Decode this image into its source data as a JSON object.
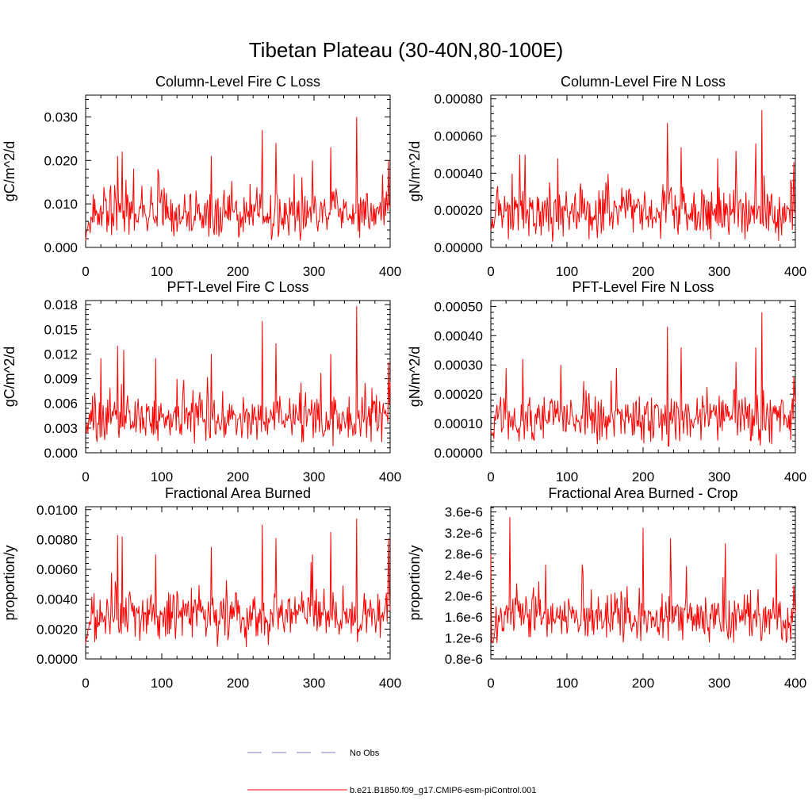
{
  "figure_title": "Tibetan Plateau (30-40N,80-100E)",
  "legend": {
    "entries": [
      {
        "label": "No Obs",
        "color": "#7b7bc8",
        "style": "dashed"
      },
      {
        "label": "b.e21.B1850.f09_g17.CMIP6-esm-piControl.001",
        "color": "#ff0000",
        "style": "solid"
      }
    ]
  },
  "colors": {
    "series": "#ff0000",
    "axis": "#000000"
  },
  "chart_data": [
    {
      "type": "line",
      "title": "Column-Level Fire C Loss",
      "ylabel": "gC/m^2/d",
      "xlim": [
        0,
        400
      ],
      "xticks": [
        0,
        100,
        200,
        300,
        400
      ],
      "ylim": [
        0,
        0.035
      ],
      "yticks": [
        "0.000",
        "0.010",
        "0.020",
        "0.030"
      ],
      "ytick_values": [
        0,
        0.01,
        0.02,
        0.03
      ],
      "series": [
        {
          "name": "b.e21.B1850.f09_g17.CMIP6-esm-piControl.001",
          "baseline": 0.0075,
          "peaks": [
            [
              42,
              0.021
            ],
            [
              48,
              0.022
            ],
            [
              95,
              0.018
            ],
            [
              165,
              0.021
            ],
            [
              232,
              0.027
            ],
            [
              250,
              0.024
            ],
            [
              298,
              0.02
            ],
            [
              322,
              0.023
            ],
            [
              356,
              0.03
            ],
            [
              398,
              0.02
            ]
          ],
          "floor": 0.0015
        }
      ]
    },
    {
      "type": "line",
      "title": "Column-Level Fire N Loss",
      "ylabel": "gN/m^2/d",
      "xlim": [
        0,
        400
      ],
      "xticks": [
        0,
        100,
        200,
        300,
        400
      ],
      "ylim": [
        0,
        0.00082
      ],
      "yticks": [
        "0.00000",
        "0.00020",
        "0.00040",
        "0.00060",
        "0.00080"
      ],
      "ytick_values": [
        0,
        0.0002,
        0.0004,
        0.0006,
        0.0008
      ],
      "series": [
        {
          "name": "b.e21.B1850.f09_g17.CMIP6-esm-piControl.001",
          "baseline": 0.00019,
          "peaks": [
            [
              38,
              0.0005
            ],
            [
              45,
              0.0005
            ],
            [
              88,
              0.00048
            ],
            [
              232,
              0.00067
            ],
            [
              250,
              0.00054
            ],
            [
              298,
              0.00048
            ],
            [
              322,
              0.00052
            ],
            [
              348,
              0.00056
            ],
            [
              356,
              0.00074
            ],
            [
              398,
              0.00046
            ]
          ],
          "floor": 3e-05
        }
      ]
    },
    {
      "type": "line",
      "title": "PFT-Level Fire C Loss",
      "ylabel": "gC/m^2/d",
      "xlim": [
        0,
        400
      ],
      "xticks": [
        0,
        100,
        200,
        300,
        400
      ],
      "ylim": [
        0,
        0.0185
      ],
      "yticks": [
        "0.000",
        "0.003",
        "0.006",
        "0.009",
        "0.012",
        "0.015",
        "0.018"
      ],
      "ytick_values": [
        0,
        0.003,
        0.006,
        0.009,
        0.012,
        0.015,
        0.018
      ],
      "series": [
        {
          "name": "b.e21.B1850.f09_g17.CMIP6-esm-piControl.001",
          "baseline": 0.0043,
          "peaks": [
            [
              20,
              0.0115
            ],
            [
              42,
              0.013
            ],
            [
              50,
              0.0125
            ],
            [
              92,
              0.0115
            ],
            [
              165,
              0.012
            ],
            [
              232,
              0.016
            ],
            [
              250,
              0.0133
            ],
            [
              322,
              0.012
            ],
            [
              356,
              0.0178
            ],
            [
              398,
              0.011
            ]
          ],
          "floor": 0.0008
        }
      ]
    },
    {
      "type": "line",
      "title": "PFT-Level Fire N Loss",
      "ylabel": "gN/m^2/d",
      "xlim": [
        0,
        400
      ],
      "xticks": [
        0,
        100,
        200,
        300,
        400
      ],
      "ylim": [
        0,
        0.00052
      ],
      "yticks": [
        "0.00000",
        "0.00010",
        "0.00020",
        "0.00030",
        "0.00040",
        "0.00050"
      ],
      "ytick_values": [
        0,
        0.0001,
        0.0002,
        0.0003,
        0.0004,
        0.0005
      ],
      "series": [
        {
          "name": "b.e21.B1850.f09_g17.CMIP6-esm-piControl.001",
          "baseline": 0.00012,
          "peaks": [
            [
              20,
              0.00029
            ],
            [
              42,
              0.00032
            ],
            [
              92,
              0.0003
            ],
            [
              165,
              0.00029
            ],
            [
              232,
              0.00043
            ],
            [
              250,
              0.00036
            ],
            [
              322,
              0.00031
            ],
            [
              348,
              0.00036
            ],
            [
              356,
              0.00048
            ],
            [
              398,
              0.00026
            ]
          ],
          "floor": 2e-05
        }
      ]
    },
    {
      "type": "line",
      "title": "Fractional Area Burned",
      "ylabel": "proportion/y",
      "xlim": [
        0,
        400
      ],
      "xticks": [
        0,
        100,
        200,
        300,
        400
      ],
      "ylim": [
        0,
        0.0102
      ],
      "yticks": [
        "0.0000",
        "0.0020",
        "0.0040",
        "0.0060",
        "0.0080",
        "0.0100"
      ],
      "ytick_values": [
        0,
        0.002,
        0.004,
        0.006,
        0.008,
        0.01
      ],
      "series": [
        {
          "name": "b.e21.B1850.f09_g17.CMIP6-esm-piControl.001",
          "baseline": 0.0029,
          "peaks": [
            [
              42,
              0.0083
            ],
            [
              48,
              0.0082
            ],
            [
              92,
              0.007
            ],
            [
              165,
              0.0075
            ],
            [
              232,
              0.009
            ],
            [
              250,
              0.0081
            ],
            [
              298,
              0.007
            ],
            [
              322,
              0.0085
            ],
            [
              356,
              0.0094
            ],
            [
              398,
              0.0081
            ]
          ],
          "floor": 0.0005
        }
      ]
    },
    {
      "type": "line",
      "title": "Fractional Area Burned - Crop",
      "ylabel": "proportion/y",
      "xlim": [
        0,
        400
      ],
      "xticks": [
        0,
        100,
        200,
        300,
        400
      ],
      "ylim": [
        8e-07,
        3.7e-06
      ],
      "yticks": [
        "0.8e-6",
        "1.2e-6",
        "1.6e-6",
        "2.0e-6",
        "2.4e-6",
        "2.8e-6",
        "3.2e-6",
        "3.6e-6"
      ],
      "ytick_values": [
        8e-07,
        1.2e-06,
        1.6e-06,
        2e-06,
        2.4e-06,
        2.8e-06,
        3.2e-06,
        3.6e-06
      ],
      "series": [
        {
          "name": "b.e21.B1850.f09_g17.CMIP6-esm-piControl.001",
          "baseline": 1.6e-06,
          "peaks": [
            [
              0,
              2.8e-06
            ],
            [
              25,
              3.5e-06
            ],
            [
              72,
              2.6e-06
            ],
            [
              120,
              2.6e-06
            ],
            [
              200,
              3.3e-06
            ],
            [
              236,
              3.1e-06
            ],
            [
              308,
              3e-06
            ],
            [
              375,
              2.8e-06
            ],
            [
              398,
              2.2e-06
            ]
          ],
          "floor": 1.1e-06
        }
      ]
    }
  ]
}
